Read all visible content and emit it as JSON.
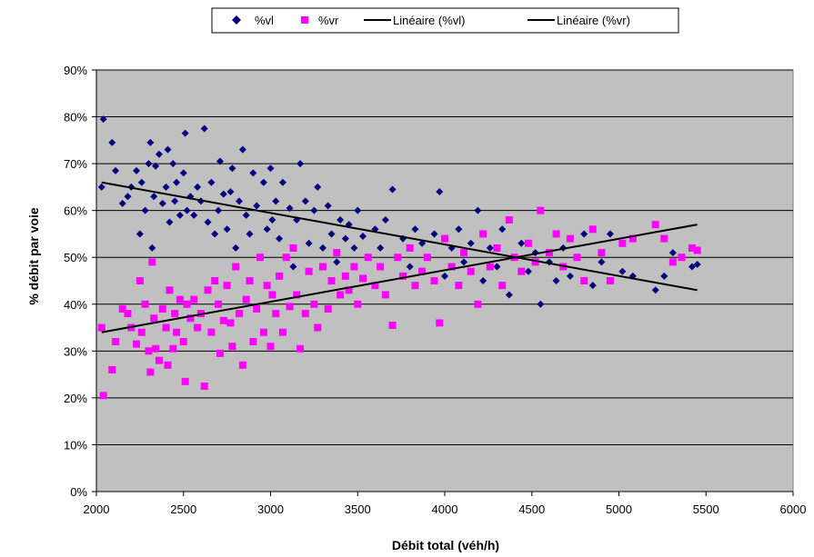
{
  "chart_data": {
    "type": "scatter",
    "title": "",
    "xlabel": "Débit total (véh/h)",
    "ylabel": "% débit par voie",
    "xlim": [
      2000,
      6000
    ],
    "ylim": [
      0,
      0.9
    ],
    "x_ticks": [
      "2000",
      "2500",
      "3000",
      "3500",
      "4000",
      "4500",
      "5000",
      "5500",
      "6000"
    ],
    "y_ticks": [
      "0%",
      "10%",
      "20%",
      "30%",
      "40%",
      "50%",
      "60%",
      "70%",
      "80%",
      "90%"
    ],
    "grid": "horizontal",
    "plot_background": "#c0c0c0",
    "legend_position": "top",
    "legend": [
      "%vl",
      "%vr",
      "Linéaire (%vl)",
      "Linéaire (%vr)"
    ],
    "series": [
      {
        "name": "%vl",
        "marker": "diamond",
        "color": "#000080",
        "x": [
          2030,
          2040,
          2090,
          2110,
          2150,
          2180,
          2200,
          2230,
          2250,
          2260,
          2280,
          2300,
          2310,
          2320,
          2330,
          2340,
          2360,
          2380,
          2400,
          2410,
          2420,
          2440,
          2450,
          2460,
          2480,
          2500,
          2510,
          2520,
          2540,
          2560,
          2580,
          2600,
          2620,
          2640,
          2660,
          2680,
          2700,
          2710,
          2730,
          2750,
          2770,
          2780,
          2800,
          2820,
          2840,
          2860,
          2880,
          2900,
          2920,
          2940,
          2960,
          2980,
          3000,
          3010,
          3030,
          3050,
          3070,
          3090,
          3110,
          3130,
          3150,
          3170,
          3200,
          3220,
          3250,
          3270,
          3300,
          3330,
          3350,
          3380,
          3400,
          3430,
          3450,
          3480,
          3500,
          3530,
          3560,
          3600,
          3630,
          3660,
          3700,
          3730,
          3760,
          3800,
          3830,
          3870,
          3900,
          3940,
          3970,
          4000,
          4040,
          4080,
          4110,
          4150,
          4190,
          4220,
          4260,
          4300,
          4330,
          4370,
          4400,
          4440,
          4480,
          4520,
          4550,
          4600,
          4640,
          4680,
          4720,
          4760,
          4800,
          4850,
          4900,
          4950,
          5020,
          5080,
          5210,
          5260,
          5310,
          5360,
          5420,
          5450
        ],
        "y": [
          0.65,
          0.795,
          0.745,
          0.685,
          0.615,
          0.63,
          0.65,
          0.685,
          0.55,
          0.66,
          0.6,
          0.7,
          0.745,
          0.52,
          0.63,
          0.695,
          0.72,
          0.615,
          0.65,
          0.73,
          0.575,
          0.7,
          0.62,
          0.66,
          0.59,
          0.68,
          0.765,
          0.6,
          0.63,
          0.59,
          0.65,
          0.62,
          0.775,
          0.575,
          0.66,
          0.55,
          0.6,
          0.705,
          0.635,
          0.56,
          0.64,
          0.69,
          0.52,
          0.62,
          0.73,
          0.59,
          0.55,
          0.68,
          0.61,
          0.5,
          0.66,
          0.56,
          0.69,
          0.58,
          0.62,
          0.54,
          0.66,
          0.5,
          0.605,
          0.48,
          0.58,
          0.7,
          0.62,
          0.53,
          0.6,
          0.65,
          0.52,
          0.61,
          0.55,
          0.49,
          0.58,
          0.54,
          0.57,
          0.52,
          0.6,
          0.545,
          0.5,
          0.56,
          0.52,
          0.58,
          0.645,
          0.5,
          0.54,
          0.48,
          0.56,
          0.53,
          0.5,
          0.55,
          0.64,
          0.46,
          0.52,
          0.56,
          0.49,
          0.53,
          0.6,
          0.45,
          0.52,
          0.48,
          0.56,
          0.42,
          0.5,
          0.53,
          0.47,
          0.51,
          0.4,
          0.49,
          0.45,
          0.52,
          0.46,
          0.5,
          0.55,
          0.44,
          0.49,
          0.55,
          0.47,
          0.46,
          0.43,
          0.46,
          0.51,
          0.5,
          0.48,
          0.485
        ]
      },
      {
        "name": "%vr",
        "marker": "square",
        "color": "#ff00ff",
        "x": [
          2030,
          2040,
          2090,
          2110,
          2150,
          2180,
          2200,
          2230,
          2250,
          2260,
          2280,
          2300,
          2310,
          2320,
          2330,
          2340,
          2360,
          2380,
          2400,
          2410,
          2420,
          2440,
          2450,
          2460,
          2480,
          2500,
          2510,
          2520,
          2540,
          2560,
          2580,
          2600,
          2620,
          2640,
          2660,
          2680,
          2700,
          2710,
          2730,
          2750,
          2770,
          2780,
          2800,
          2820,
          2840,
          2860,
          2880,
          2900,
          2920,
          2940,
          2960,
          2980,
          3000,
          3010,
          3030,
          3050,
          3070,
          3090,
          3110,
          3130,
          3150,
          3170,
          3200,
          3220,
          3250,
          3270,
          3300,
          3330,
          3350,
          3380,
          3400,
          3430,
          3450,
          3480,
          3500,
          3530,
          3560,
          3600,
          3630,
          3660,
          3700,
          3730,
          3760,
          3800,
          3830,
          3870,
          3900,
          3940,
          3970,
          4000,
          4040,
          4080,
          4110,
          4150,
          4190,
          4220,
          4260,
          4300,
          4330,
          4370,
          4400,
          4440,
          4480,
          4520,
          4550,
          4600,
          4640,
          4680,
          4720,
          4760,
          4800,
          4850,
          4900,
          4950,
          5020,
          5080,
          5210,
          5260,
          5310,
          5360,
          5420,
          5450
        ],
        "y": [
          0.35,
          0.205,
          0.26,
          0.32,
          0.39,
          0.38,
          0.35,
          0.315,
          0.45,
          0.34,
          0.4,
          0.3,
          0.255,
          0.49,
          0.37,
          0.305,
          0.28,
          0.39,
          0.35,
          0.27,
          0.43,
          0.305,
          0.38,
          0.34,
          0.41,
          0.32,
          0.235,
          0.4,
          0.37,
          0.41,
          0.35,
          0.38,
          0.225,
          0.43,
          0.34,
          0.45,
          0.4,
          0.295,
          0.365,
          0.44,
          0.36,
          0.31,
          0.48,
          0.38,
          0.27,
          0.41,
          0.45,
          0.32,
          0.39,
          0.5,
          0.34,
          0.44,
          0.31,
          0.42,
          0.38,
          0.46,
          0.34,
          0.5,
          0.395,
          0.52,
          0.42,
          0.305,
          0.38,
          0.47,
          0.4,
          0.35,
          0.48,
          0.39,
          0.45,
          0.51,
          0.42,
          0.46,
          0.43,
          0.48,
          0.4,
          0.455,
          0.5,
          0.44,
          0.48,
          0.42,
          0.355,
          0.5,
          0.46,
          0.52,
          0.44,
          0.47,
          0.5,
          0.45,
          0.36,
          0.54,
          0.48,
          0.44,
          0.51,
          0.47,
          0.4,
          0.55,
          0.48,
          0.52,
          0.44,
          0.58,
          0.5,
          0.47,
          0.53,
          0.49,
          0.6,
          0.51,
          0.55,
          0.48,
          0.54,
          0.5,
          0.45,
          0.56,
          0.51,
          0.45,
          0.53,
          0.54,
          0.57,
          0.54,
          0.49,
          0.5,
          0.52,
          0.515
        ]
      },
      {
        "name": "Linéaire (%vl)",
        "type": "line",
        "color": "#000000",
        "x": [
          2030,
          5450
        ],
        "y": [
          0.66,
          0.43
        ]
      },
      {
        "name": "Linéaire (%vr)",
        "type": "line",
        "color": "#000000",
        "x": [
          2030,
          5450
        ],
        "y": [
          0.34,
          0.57
        ]
      }
    ]
  }
}
